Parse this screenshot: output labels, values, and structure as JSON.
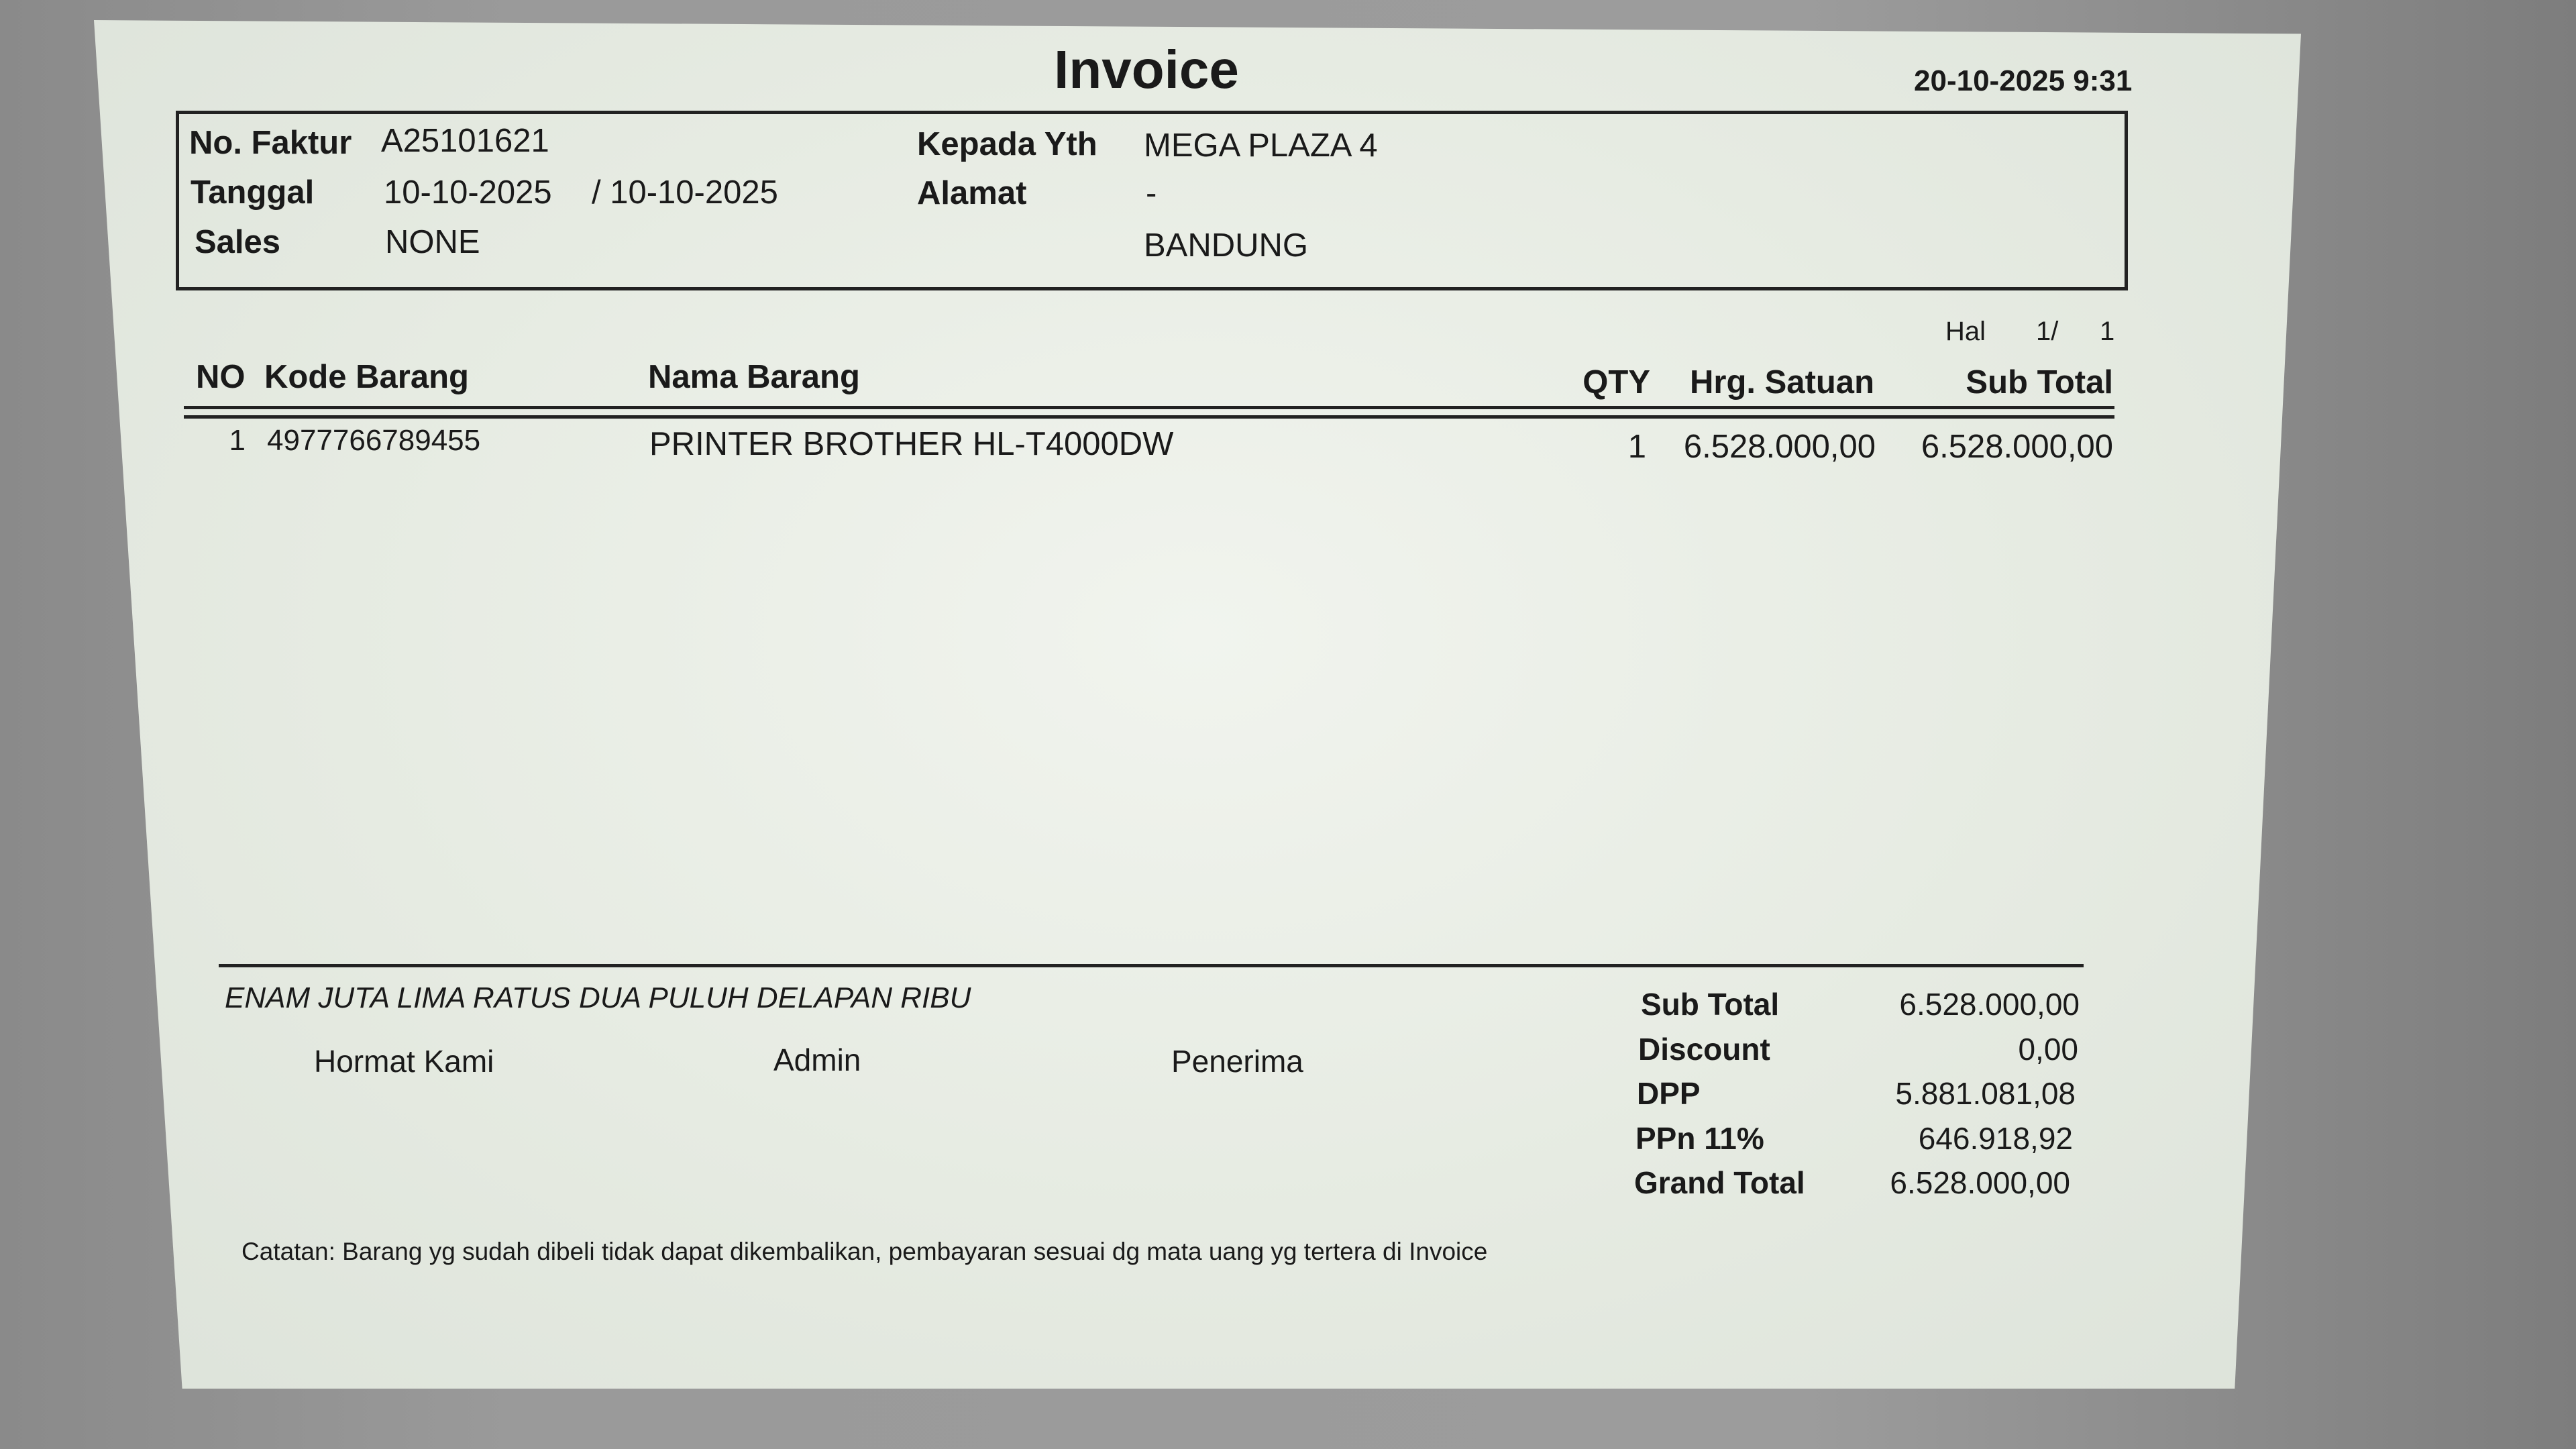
{
  "title": "Invoice",
  "printed_at": "20-10-2025 9:31",
  "header": {
    "no_faktur_label": "No. Faktur",
    "no_faktur": "A25101621",
    "tanggal_label": "Tanggal",
    "tanggal": "10-10-2025",
    "tanggal2": "/ 10-10-2025",
    "sales_label": "Sales",
    "sales": "NONE",
    "kepada_label": "Kepada Yth",
    "kepada": "MEGA PLAZA 4",
    "alamat_label": "Alamat",
    "alamat": "-",
    "kota": "BANDUNG"
  },
  "page": {
    "label": "Hal",
    "current": "1/",
    "total": "1"
  },
  "table": {
    "columns": [
      "NO",
      "Kode Barang",
      "Nama Barang",
      "QTY",
      "Hrg. Satuan",
      "Sub Total"
    ],
    "rows": [
      {
        "no": "1",
        "kode": "4977766789455",
        "nama": "PRINTER BROTHER HL-T4000DW",
        "qty": "1",
        "harga": "6.528.000,00",
        "subtotal": "6.528.000,00"
      }
    ]
  },
  "terbilang": "ENAM JUTA LIMA RATUS DUA PULUH DELAPAN RIBU",
  "signatures": [
    "Hormat Kami",
    "Admin",
    "Penerima"
  ],
  "summary": [
    {
      "label": "Sub Total",
      "value": "6.528.000,00"
    },
    {
      "label": "Discount",
      "value": "0,00"
    },
    {
      "label": "DPP",
      "value": "5.881.081,08"
    },
    {
      "label": "PPn 11%",
      "value": "646.918,92"
    },
    {
      "label": "Grand Total",
      "value": "6.528.000,00"
    }
  ],
  "note": "Catatan: Barang yg sudah dibeli tidak dapat dikembalikan, pembayaran sesuai dg mata uang yg tertera di Invoice"
}
